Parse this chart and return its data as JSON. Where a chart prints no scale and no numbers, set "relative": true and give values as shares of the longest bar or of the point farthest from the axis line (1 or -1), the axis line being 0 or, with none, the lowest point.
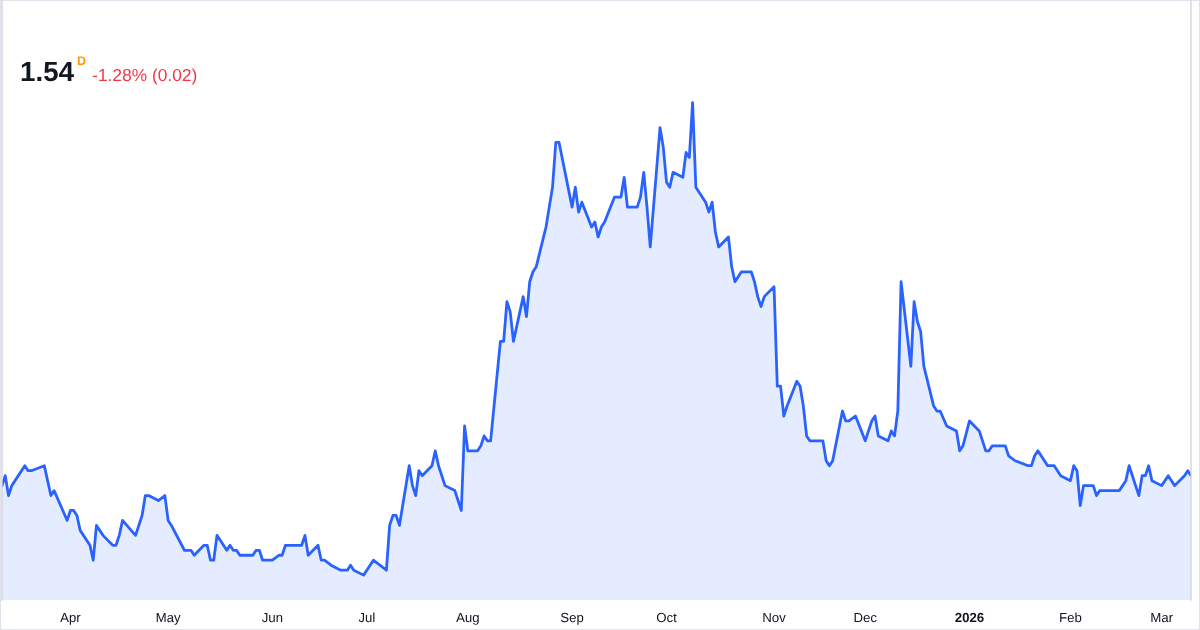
{
  "chart_data": {
    "type": "area",
    "title": "1.54",
    "subtitle": "-1.28% (0.02)",
    "annotations": [
      "D"
    ],
    "color": "#2962ff",
    "relative": true,
    "x": [
      "2025-03-11",
      "2025-03-12",
      "2025-03-13",
      "2025-03-14",
      "2025-03-18",
      "2025-03-19",
      "2025-03-20",
      "2025-03-24",
      "2025-03-26",
      "2025-03-27",
      "2025-03-31",
      "2025-04-01",
      "2025-04-02",
      "2025-04-03",
      "2025-04-04",
      "2025-04-07",
      "2025-04-08",
      "2025-04-09",
      "2025-04-10",
      "2025-04-11",
      "2025-04-14",
      "2025-04-15",
      "2025-04-16",
      "2025-04-17",
      "2025-04-21",
      "2025-04-23",
      "2025-04-24",
      "2025-04-25",
      "2025-04-28",
      "2025-04-30",
      "2025-05-01",
      "2025-05-02",
      "2025-05-06",
      "2025-05-07",
      "2025-05-08",
      "2025-05-09",
      "2025-05-12",
      "2025-05-13",
      "2025-05-14",
      "2025-05-15",
      "2025-05-16",
      "2025-05-19",
      "2025-05-20",
      "2025-05-21",
      "2025-05-22",
      "2025-05-23",
      "2025-05-27",
      "2025-05-28",
      "2025-05-29",
      "2025-05-30",
      "2025-06-02",
      "2025-06-04",
      "2025-06-05",
      "2025-06-06",
      "2025-06-09",
      "2025-06-10",
      "2025-06-11",
      "2025-06-12",
      "2025-06-13",
      "2025-06-16",
      "2025-06-17",
      "2025-06-18",
      "2025-06-20",
      "2025-06-23",
      "2025-06-24",
      "2025-06-25",
      "2025-06-26",
      "2025-06-27",
      "2025-06-30",
      "2025-07-01",
      "2025-07-02",
      "2025-07-03",
      "2025-07-07",
      "2025-07-08",
      "2025-07-09",
      "2025-07-10",
      "2025-07-11",
      "2025-07-14",
      "2025-07-15",
      "2025-07-16",
      "2025-07-17",
      "2025-07-18",
      "2025-07-21",
      "2025-07-22",
      "2025-07-23",
      "2025-07-24",
      "2025-07-25",
      "2025-07-28",
      "2025-07-29",
      "2025-07-30",
      "2025-07-31",
      "2025-08-01",
      "2025-08-04",
      "2025-08-05",
      "2025-08-06",
      "2025-08-07",
      "2025-08-08",
      "2025-08-11",
      "2025-08-12",
      "2025-08-13",
      "2025-08-14",
      "2025-08-15",
      "2025-08-18",
      "2025-08-19",
      "2025-08-20",
      "2025-08-21",
      "2025-08-22",
      "2025-08-25",
      "2025-08-26",
      "2025-08-27",
      "2025-08-28",
      "2025-08-29",
      "2025-09-02",
      "2025-09-03",
      "2025-09-04",
      "2025-09-05",
      "2025-09-08",
      "2025-09-09",
      "2025-09-10",
      "2025-09-11",
      "2025-09-12",
      "2025-09-15",
      "2025-09-16",
      "2025-09-17",
      "2025-09-18",
      "2025-09-19",
      "2025-09-22",
      "2025-09-23",
      "2025-09-24",
      "2025-09-25",
      "2025-09-26",
      "2025-09-29",
      "2025-09-30",
      "2025-10-01",
      "2025-10-02",
      "2025-10-03",
      "2025-10-06",
      "2025-10-07",
      "2025-10-08",
      "2025-10-09",
      "2025-10-10",
      "2025-10-13",
      "2025-10-14",
      "2025-10-15",
      "2025-10-16",
      "2025-10-17",
      "2025-10-20",
      "2025-10-21",
      "2025-10-22",
      "2025-10-23",
      "2025-10-24",
      "2025-10-27",
      "2025-10-28",
      "2025-10-29",
      "2025-10-30",
      "2025-10-31",
      "2025-11-03",
      "2025-11-04",
      "2025-11-05",
      "2025-11-06",
      "2025-11-07",
      "2025-11-10",
      "2025-11-11",
      "2025-11-12",
      "2025-11-13",
      "2025-11-14",
      "2025-11-17",
      "2025-11-18",
      "2025-11-19",
      "2025-11-20",
      "2025-11-21",
      "2025-11-24",
      "2025-11-25",
      "2025-11-26",
      "2025-11-28",
      "2025-12-01",
      "2025-12-02",
      "2025-12-03",
      "2025-12-04",
      "2025-12-05",
      "2025-12-08",
      "2025-12-09",
      "2025-12-10",
      "2025-12-11",
      "2025-12-12",
      "2025-12-15",
      "2025-12-16",
      "2025-12-17",
      "2025-12-18",
      "2025-12-19",
      "2025-12-22",
      "2025-12-23",
      "2025-12-24",
      "2025-12-26",
      "2025-12-29",
      "2025-12-30",
      "2025-12-31",
      "2026-01-02",
      "2026-01-05",
      "2026-01-06",
      "2026-01-07",
      "2026-01-08",
      "2026-01-09",
      "2026-01-12",
      "2026-01-13",
      "2026-01-14",
      "2026-01-16",
      "2026-01-20",
      "2026-01-21",
      "2026-01-22",
      "2026-01-23",
      "2026-01-26",
      "2026-01-27",
      "2026-01-28",
      "2026-01-30",
      "2026-02-02",
      "2026-02-03",
      "2026-02-04",
      "2026-02-05",
      "2026-02-06",
      "2026-02-09",
      "2026-02-10",
      "2026-02-11",
      "2026-02-12",
      "2026-02-17",
      "2026-02-18",
      "2026-02-19",
      "2026-02-20",
      "2026-02-23",
      "2026-02-24",
      "2026-02-25",
      "2026-02-26",
      "2026-02-27",
      "2026-03-02",
      "2026-03-04",
      "2026-03-05",
      "2026-03-06",
      "2026-03-09",
      "2026-03-10",
      "2026-03-11"
    ],
    "values": [
      0.23,
      0.25,
      0.21,
      0.23,
      0.27,
      0.26,
      0.26,
      0.27,
      0.21,
      0.22,
      0.16,
      0.18,
      0.18,
      0.17,
      0.14,
      0.11,
      0.08,
      0.15,
      0.14,
      0.13,
      0.11,
      0.11,
      0.13,
      0.16,
      0.13,
      0.17,
      0.21,
      0.21,
      0.2,
      0.21,
      0.16,
      0.15,
      0.1,
      0.1,
      0.1,
      0.09,
      0.11,
      0.11,
      0.08,
      0.08,
      0.13,
      0.1,
      0.11,
      0.1,
      0.1,
      0.09,
      0.09,
      0.1,
      0.1,
      0.08,
      0.08,
      0.09,
      0.09,
      0.11,
      0.11,
      0.11,
      0.11,
      0.13,
      0.09,
      0.11,
      0.08,
      0.08,
      0.07,
      0.06,
      0.06,
      0.06,
      0.07,
      0.06,
      0.05,
      0.06,
      0.07,
      0.08,
      0.06,
      0.15,
      0.17,
      0.17,
      0.15,
      0.27,
      0.23,
      0.21,
      0.26,
      0.25,
      0.27,
      0.3,
      0.27,
      0.25,
      0.23,
      0.22,
      0.2,
      0.18,
      0.35,
      0.3,
      0.3,
      0.31,
      0.33,
      0.32,
      0.32,
      0.52,
      0.52,
      0.6,
      0.58,
      0.52,
      0.61,
      0.57,
      0.64,
      0.66,
      0.67,
      0.75,
      0.79,
      0.83,
      0.92,
      0.92,
      0.79,
      0.83,
      0.78,
      0.8,
      0.75,
      0.76,
      0.73,
      0.75,
      0.76,
      0.81,
      0.81,
      0.81,
      0.85,
      0.79,
      0.79,
      0.81,
      0.86,
      0.79,
      0.71,
      0.95,
      0.91,
      0.84,
      0.83,
      0.86,
      0.85,
      0.9,
      0.89,
      1,
      0.83,
      0.8,
      0.78,
      0.8,
      0.74,
      0.71,
      0.73,
      0.67,
      0.64,
      0.65,
      0.66,
      0.66,
      0.64,
      0.61,
      0.59,
      0.61,
      0.63,
      0.43,
      0.43,
      0.37,
      0.39,
      0.44,
      0.43,
      0.39,
      0.33,
      0.32,
      0.32,
      0.32,
      0.28,
      0.27,
      0.28,
      0.38,
      0.36,
      0.36,
      0.37,
      0.32,
      0.34,
      0.36,
      0.37,
      0.33,
      0.32,
      0.34,
      0.33,
      0.38,
      0.64,
      0.47,
      0.6,
      0.56,
      0.54,
      0.47,
      0.39,
      0.38,
      0.38,
      0.35,
      0.34,
      0.3,
      0.31,
      0.36,
      0.34,
      0.32,
      0.3,
      0.3,
      0.31,
      0.31,
      0.31,
      0.29,
      0.28,
      0.27,
      0.27,
      0.29,
      0.3,
      0.27,
      0.27,
      0.27,
      0.25,
      0.24,
      0.27,
      0.26,
      0.19,
      0.23,
      0.23,
      0.21,
      0.22,
      0.22,
      0.22,
      0.23,
      0.24,
      0.27,
      0.21,
      0.25,
      0.25,
      0.27,
      0.24,
      0.23,
      0.25,
      0.24,
      0.23,
      0.25,
      0.26,
      0.25
    ],
    "xlim": [
      "2025-03-11",
      "2026-03-11"
    ],
    "xticks": [
      {
        "value": "2025-04-01",
        "label": "Apr"
      },
      {
        "value": "2025-05-01",
        "label": "May"
      },
      {
        "value": "2025-06-02",
        "label": "Jun"
      },
      {
        "value": "2025-07-01",
        "label": "Jul"
      },
      {
        "value": "2025-08-01",
        "label": "Aug"
      },
      {
        "value": "2025-09-02",
        "label": "Sep"
      },
      {
        "value": "2025-10-01",
        "label": "Oct"
      },
      {
        "value": "2025-11-03",
        "label": "Nov"
      },
      {
        "value": "2025-12-01",
        "label": "Dec"
      },
      {
        "value": "2026-01-02",
        "label": "2026"
      },
      {
        "value": "2026-02-02",
        "label": "Feb"
      },
      {
        "value": "2026-03-02",
        "label": "Mar"
      }
    ]
  }
}
